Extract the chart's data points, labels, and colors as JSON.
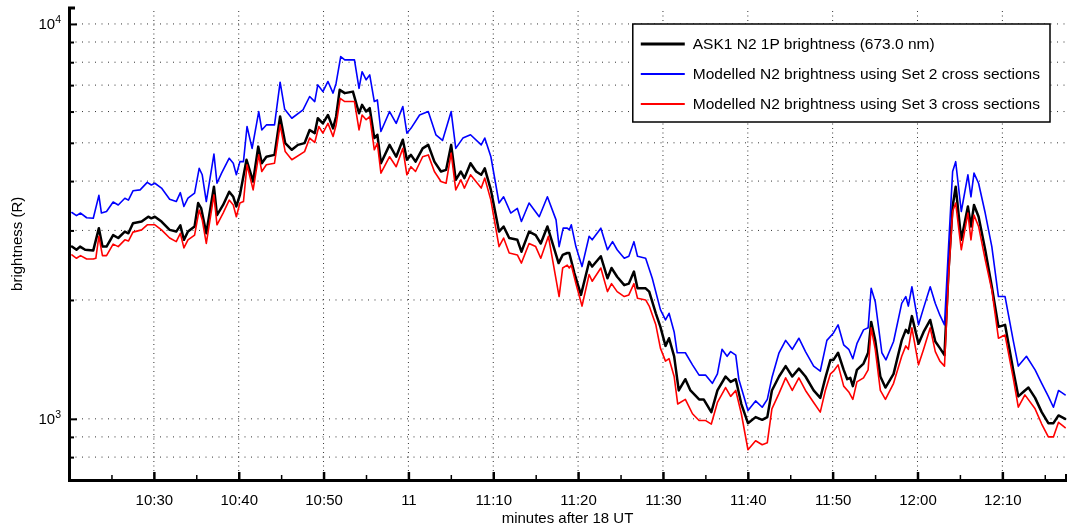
{
  "chart_data": {
    "type": "line",
    "xlabel": "minutes after 18 UT",
    "ylabel": "brightness (R)",
    "log": "y",
    "grid": true,
    "legend": "top right",
    "xlim": [
      10.3333,
      12.2917
    ],
    "ylim": [
      700,
      11000
    ],
    "xticks": [
      {
        "value": 10.4167,
        "label": null
      },
      {
        "value": 10.5,
        "label": "10:30"
      },
      {
        "value": 10.5833,
        "label": null
      },
      {
        "value": 10.6667,
        "label": "10:40"
      },
      {
        "value": 10.75,
        "label": null
      },
      {
        "value": 10.8333,
        "label": "10:50"
      },
      {
        "value": 10.9167,
        "label": null
      },
      11,
      {
        "value": 11.0833,
        "label": null
      },
      {
        "value": 11.1667,
        "label": "11:10"
      },
      {
        "value": 11.25,
        "label": null
      },
      {
        "value": 11.3333,
        "label": "11:20"
      },
      {
        "value": 11.4167,
        "label": null
      },
      {
        "value": 11.5,
        "label": "11:30"
      },
      {
        "value": 11.5833,
        "label": null
      },
      {
        "value": 11.6667,
        "label": "11:40"
      },
      {
        "value": 11.75,
        "label": null
      },
      {
        "value": 11.8333,
        "label": "11:50"
      },
      {
        "value": 11.9167,
        "label": null
      },
      {
        "value": 12,
        "label": "12:00"
      },
      {
        "value": 12.0833,
        "label": null
      },
      {
        "value": 12.1667,
        "label": "12:10"
      },
      {
        "value": 12.25,
        "label": null
      }
    ],
    "yticks": [
      {
        "value": 800,
        "label": null
      },
      {
        "value": 900,
        "label": null
      },
      {
        "value": 1000,
        "label": "10$^{3}$"
      },
      {
        "value": 2000,
        "label": null
      },
      {
        "value": 3000,
        "label": null
      },
      {
        "value": 4000,
        "label": null
      },
      {
        "value": 5000,
        "label": null
      },
      {
        "value": 6000,
        "label": null
      },
      {
        "value": 7000,
        "label": null
      },
      {
        "value": 8000,
        "label": null
      },
      {
        "value": 9000,
        "label": null
      },
      {
        "value": 10000,
        "label": "10$^{4}$"
      }
    ],
    "series": [
      {
        "name": "ASK1 N2 1P brightness (673.0 nm)",
        "color": "#000000",
        "x": [
          10.339,
          10.348,
          10.355,
          10.365,
          10.381,
          10.392,
          10.399,
          10.407,
          10.42,
          10.43,
          10.443,
          10.45,
          10.459,
          10.476,
          10.489,
          10.495,
          10.502,
          10.515,
          10.531,
          10.544,
          10.552,
          10.559,
          10.567,
          10.58,
          10.587,
          10.593,
          10.603,
          10.618,
          10.624,
          10.636,
          10.648,
          10.656,
          10.662,
          10.669,
          10.682,
          10.695,
          10.705,
          10.712,
          10.721,
          10.737,
          10.748,
          10.758,
          10.771,
          10.783,
          10.796,
          10.806,
          10.816,
          10.822,
          10.832,
          10.842,
          10.852,
          10.858,
          10.865,
          10.875,
          10.891,
          10.903,
          10.909,
          10.917,
          10.924,
          10.933,
          10.939,
          10.946,
          10.963,
          10.976,
          10.989,
          10.997,
          11.005,
          11.014,
          11.028,
          11.039,
          11.051,
          11.064,
          11.074,
          11.084,
          11.093,
          11.103,
          11.11,
          11.122,
          11.133,
          11.143,
          11.15,
          11.162,
          11.178,
          11.187,
          11.198,
          11.214,
          11.222,
          11.237,
          11.25,
          11.26,
          11.273,
          11.295,
          11.303,
          11.312,
          11.316,
          11.326,
          11.339,
          11.355,
          11.361,
          11.378,
          11.391,
          11.399,
          11.41,
          11.424,
          11.433,
          11.443,
          11.45,
          11.466,
          11.473,
          11.486,
          11.495,
          11.505,
          11.512,
          11.522,
          11.531,
          11.544,
          11.554,
          11.571,
          11.58,
          11.595,
          11.607,
          11.623,
          11.633,
          11.643,
          11.654,
          11.667,
          11.682,
          11.695,
          11.705,
          11.714,
          11.728,
          11.741,
          11.754,
          11.767,
          11.78,
          11.796,
          11.809,
          11.819,
          11.829,
          11.835,
          11.844,
          11.855,
          11.862,
          11.868,
          11.873,
          11.881,
          11.894,
          11.903,
          11.909,
          11.917,
          11.927,
          11.937,
          11.953,
          11.969,
          11.977,
          11.982,
          11.989,
          12.002,
          12.012,
          12.025,
          12.035,
          12.044,
          12.053,
          12.061,
          12.069,
          12.075,
          12.086,
          12.099,
          12.105,
          12.111,
          12.12,
          12.133,
          12.146,
          12.159,
          12.172,
          12.188,
          12.198,
          12.211,
          12.218,
          12.231,
          12.244,
          12.257,
          12.267,
          12.277,
          12.29
        ],
        "values": [
          2730,
          2680,
          2730,
          2680,
          2670,
          3040,
          2730,
          2730,
          2920,
          2870,
          2980,
          2950,
          3130,
          3160,
          3250,
          3220,
          3250,
          3160,
          3010,
          2980,
          3090,
          2840,
          2980,
          3070,
          3520,
          3410,
          2950,
          3870,
          3280,
          3480,
          3760,
          3650,
          3450,
          3690,
          4530,
          3990,
          4890,
          4440,
          4610,
          4660,
          5830,
          4990,
          4800,
          4940,
          4990,
          5390,
          5290,
          5770,
          5600,
          5880,
          5440,
          5830,
          6810,
          6680,
          6740,
          5940,
          6240,
          6000,
          6120,
          5140,
          5240,
          4440,
          4940,
          4610,
          5090,
          4530,
          4660,
          4480,
          4840,
          4940,
          4480,
          4230,
          4270,
          4940,
          4030,
          4230,
          4070,
          4440,
          4230,
          4150,
          4310,
          3800,
          2980,
          3070,
          2870,
          2840,
          2650,
          2980,
          2920,
          2780,
          3070,
          2480,
          2600,
          2630,
          2630,
          2340,
          2060,
          2500,
          2430,
          2580,
          2270,
          2410,
          2290,
          2180,
          2200,
          2360,
          2140,
          2140,
          2100,
          1850,
          1710,
          1530,
          1600,
          1440,
          1180,
          1260,
          1180,
          1120,
          1120,
          1040,
          1180,
          1280,
          1240,
          1260,
          1090,
          975,
          1010,
          994,
          1010,
          1180,
          1280,
          1360,
          1280,
          1340,
          1280,
          1180,
          1130,
          1270,
          1410,
          1410,
          1470,
          1330,
          1260,
          1270,
          1210,
          1330,
          1380,
          1470,
          1760,
          1580,
          1280,
          1200,
          1300,
          1580,
          1680,
          1650,
          1820,
          1550,
          1660,
          1780,
          1570,
          1510,
          1450,
          2380,
          3450,
          3870,
          2840,
          3450,
          3070,
          3480,
          3250,
          2680,
          2160,
          1710,
          1730,
          1330,
          1140,
          1180,
          1200,
          1130,
          1040,
          975,
          975,
          1020,
          1000
        ]
      },
      {
        "name": "Modelled N2 brightness using Set 2 cross sections",
        "color": "#0000ff",
        "x": [
          10.339,
          10.348,
          10.356,
          10.368,
          10.381,
          10.392,
          10.397,
          10.407,
          10.42,
          10.43,
          10.443,
          10.45,
          10.459,
          10.473,
          10.487,
          10.495,
          10.502,
          10.515,
          10.531,
          10.544,
          10.552,
          10.559,
          10.567,
          10.58,
          10.589,
          10.595,
          10.603,
          10.618,
          10.624,
          10.633,
          10.648,
          10.656,
          10.662,
          10.669,
          10.676,
          10.683,
          10.693,
          10.706,
          10.712,
          10.721,
          10.737,
          10.748,
          10.757,
          10.771,
          10.793,
          10.806,
          10.816,
          10.822,
          10.832,
          10.842,
          10.852,
          10.858,
          10.867,
          10.875,
          10.894,
          10.903,
          10.909,
          10.917,
          10.924,
          10.933,
          10.939,
          10.946,
          10.963,
          10.976,
          10.989,
          10.997,
          11.005,
          11.022,
          11.039,
          11.054,
          11.067,
          11.084,
          11.093,
          11.107,
          11.122,
          11.143,
          11.15,
          11.162,
          11.178,
          11.187,
          11.201,
          11.214,
          11.222,
          11.237,
          11.257,
          11.273,
          11.29,
          11.296,
          11.304,
          11.312,
          11.316,
          11.32,
          11.329,
          11.341,
          11.355,
          11.361,
          11.378,
          11.391,
          11.401,
          11.41,
          11.424,
          11.433,
          11.443,
          11.45,
          11.466,
          11.479,
          11.495,
          11.505,
          11.512,
          11.522,
          11.528,
          11.544,
          11.558,
          11.571,
          11.584,
          11.597,
          11.607,
          11.616,
          11.626,
          11.633,
          11.643,
          11.649,
          11.667,
          11.682,
          11.695,
          11.705,
          11.714,
          11.728,
          11.741,
          11.754,
          11.767,
          11.78,
          11.796,
          11.809,
          11.822,
          11.835,
          11.844,
          11.855,
          11.865,
          11.873,
          11.881,
          11.894,
          11.903,
          11.909,
          11.917,
          11.93,
          11.938,
          11.953,
          11.969,
          11.977,
          11.982,
          11.989,
          12.002,
          12.012,
          12.025,
          12.035,
          12.044,
          12.053,
          12.061,
          12.069,
          12.075,
          12.086,
          12.099,
          12.105,
          12.111,
          12.12,
          12.133,
          12.146,
          12.159,
          12.172,
          12.188,
          12.198,
          12.214,
          12.231,
          12.244,
          12.257,
          12.267,
          12.277,
          12.29
        ],
        "values": [
          3330,
          3270,
          3320,
          3230,
          3220,
          3680,
          3320,
          3350,
          3540,
          3480,
          3620,
          3580,
          3780,
          3800,
          3970,
          3910,
          3950,
          3840,
          3600,
          3550,
          3740,
          3450,
          3620,
          3730,
          4310,
          4150,
          3550,
          4680,
          3950,
          4190,
          4570,
          4440,
          4150,
          4480,
          4480,
          5500,
          4840,
          6000,
          5390,
          5550,
          5550,
          7120,
          6080,
          5770,
          6060,
          6550,
          6360,
          7010,
          6740,
          7150,
          6680,
          7080,
          8270,
          8110,
          8110,
          6870,
          7570,
          7220,
          7430,
          6360,
          6420,
          5340,
          6000,
          5600,
          6180,
          5290,
          5440,
          5880,
          6000,
          5240,
          5070,
          6000,
          4840,
          5140,
          5240,
          4940,
          5140,
          4610,
          3520,
          3650,
          3320,
          3410,
          3160,
          3520,
          3250,
          3650,
          3190,
          2730,
          3040,
          3040,
          3010,
          3100,
          2730,
          2430,
          2900,
          2840,
          3040,
          2680,
          2810,
          2680,
          2550,
          2580,
          2810,
          2580,
          2550,
          2270,
          1890,
          1780,
          1850,
          1660,
          1470,
          1470,
          1370,
          1290,
          1290,
          1230,
          1300,
          1500,
          1440,
          1480,
          1450,
          1260,
          1050,
          1110,
          1070,
          1120,
          1270,
          1470,
          1580,
          1500,
          1600,
          1480,
          1360,
          1320,
          1580,
          1650,
          1730,
          1540,
          1500,
          1420,
          1550,
          1680,
          1700,
          2140,
          1980,
          1470,
          1410,
          1570,
          1960,
          2040,
          1930,
          2160,
          1730,
          1910,
          2160,
          1960,
          1830,
          1730,
          2730,
          4230,
          4480,
          3350,
          4150,
          3650,
          4190,
          3950,
          3320,
          2730,
          2040,
          2040,
          1580,
          1360,
          1440,
          1330,
          1230,
          1140,
          1070,
          1180,
          1150
        ]
      },
      {
        "name": "Modelled N2 brightness using Set 3 cross sections",
        "color": "#ff0000",
        "x": [
          10.339,
          10.348,
          10.356,
          10.368,
          10.381,
          10.386,
          10.392,
          10.399,
          10.407,
          10.42,
          10.43,
          10.443,
          10.45,
          10.459,
          10.476,
          10.487,
          10.502,
          10.515,
          10.531,
          10.544,
          10.552,
          10.559,
          10.567,
          10.58,
          10.589,
          10.595,
          10.603,
          10.618,
          10.624,
          10.636,
          10.648,
          10.656,
          10.662,
          10.669,
          10.676,
          10.683,
          10.695,
          10.706,
          10.712,
          10.721,
          10.737,
          10.748,
          10.758,
          10.771,
          10.796,
          10.806,
          10.816,
          10.824,
          10.832,
          10.842,
          10.852,
          10.858,
          10.866,
          10.875,
          10.894,
          10.903,
          10.909,
          10.917,
          10.924,
          10.933,
          10.939,
          10.946,
          10.963,
          10.976,
          10.989,
          10.997,
          11.005,
          11.014,
          11.028,
          11.039,
          11.051,
          11.064,
          11.074,
          11.084,
          11.093,
          11.103,
          11.11,
          11.122,
          11.143,
          11.15,
          11.162,
          11.178,
          11.187,
          11.198,
          11.214,
          11.222,
          11.237,
          11.25,
          11.26,
          11.275,
          11.296,
          11.303,
          11.312,
          11.316,
          11.32,
          11.329,
          11.341,
          11.355,
          11.361,
          11.378,
          11.391,
          11.399,
          11.41,
          11.424,
          11.433,
          11.443,
          11.45,
          11.466,
          11.473,
          11.486,
          11.495,
          11.505,
          11.512,
          11.522,
          11.529,
          11.544,
          11.558,
          11.571,
          11.584,
          11.595,
          11.607,
          11.623,
          11.633,
          11.643,
          11.654,
          11.667,
          11.682,
          11.695,
          11.705,
          11.714,
          11.728,
          11.741,
          11.754,
          11.767,
          11.78,
          11.796,
          11.809,
          11.819,
          11.829,
          11.835,
          11.844,
          11.855,
          11.865,
          11.873,
          11.881,
          11.894,
          11.903,
          11.909,
          11.917,
          11.927,
          11.937,
          11.953,
          11.969,
          11.977,
          11.982,
          11.989,
          12.002,
          12.012,
          12.025,
          12.035,
          12.044,
          12.053,
          12.061,
          12.069,
          12.075,
          12.086,
          12.099,
          12.105,
          12.111,
          12.12,
          12.133,
          12.146,
          12.159,
          12.172,
          12.188,
          12.198,
          12.211,
          12.231,
          12.244,
          12.257,
          12.267,
          12.277,
          12.29
        ],
        "values": [
          2600,
          2550,
          2590,
          2540,
          2540,
          2550,
          2900,
          2590,
          2590,
          2770,
          2730,
          2840,
          2820,
          2970,
          3010,
          3100,
          3100,
          3010,
          2870,
          2810,
          2950,
          2710,
          2840,
          2920,
          3380,
          3190,
          2780,
          3690,
          3100,
          3320,
          3580,
          3480,
          3250,
          3520,
          3550,
          4400,
          3800,
          4660,
          4230,
          4400,
          4440,
          5550,
          4750,
          4530,
          4750,
          5140,
          5010,
          5500,
          5290,
          5600,
          5190,
          5550,
          6480,
          6360,
          6360,
          5390,
          5880,
          5720,
          5830,
          4800,
          4990,
          4190,
          4610,
          4350,
          4840,
          4150,
          4350,
          4230,
          4610,
          4660,
          4230,
          3990,
          3950,
          4710,
          3800,
          4030,
          3840,
          4150,
          3840,
          4070,
          3580,
          2730,
          2870,
          2630,
          2600,
          2480,
          2780,
          2730,
          2550,
          2900,
          2040,
          2410,
          2450,
          2410,
          2450,
          2200,
          1930,
          2320,
          2230,
          2410,
          2100,
          2200,
          2100,
          2040,
          2060,
          2200,
          2020,
          2000,
          1930,
          1730,
          1510,
          1400,
          1420,
          1280,
          1090,
          1120,
          1030,
          990,
          990,
          970,
          1100,
          1200,
          1140,
          1180,
          1030,
          835,
          880,
          860,
          870,
          1060,
          1160,
          1270,
          1180,
          1270,
          1180,
          1100,
          1040,
          1180,
          1300,
          1320,
          1370,
          1210,
          1170,
          1120,
          1240,
          1270,
          1330,
          1700,
          1500,
          1180,
          1120,
          1230,
          1440,
          1530,
          1500,
          1700,
          1370,
          1500,
          1700,
          1480,
          1400,
          1360,
          2290,
          3350,
          3520,
          2680,
          3320,
          2840,
          3280,
          3070,
          2530,
          2120,
          1600,
          1630,
          1270,
          1070,
          1150,
          1060,
          970,
          900,
          900,
          980,
          950
        ]
      }
    ]
  }
}
